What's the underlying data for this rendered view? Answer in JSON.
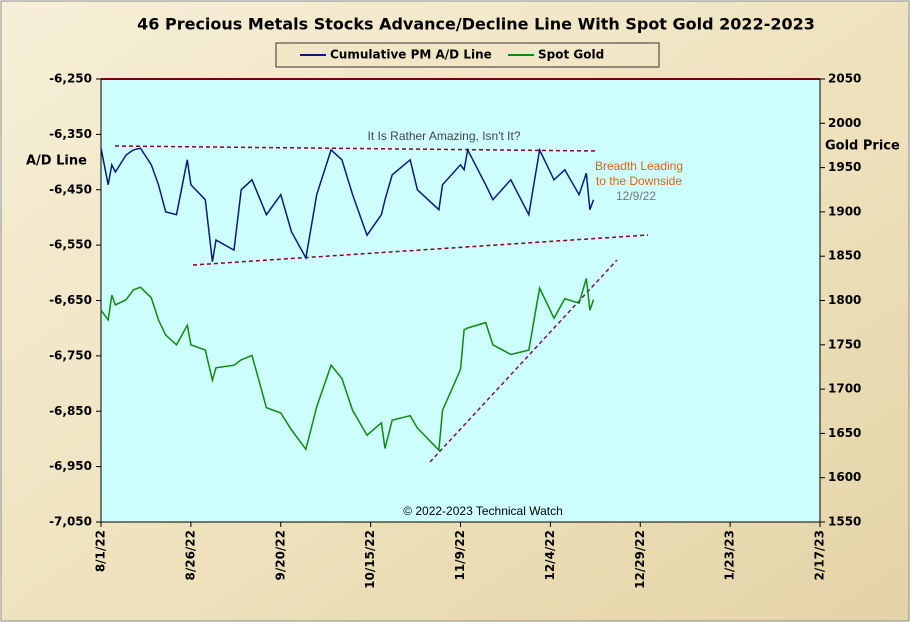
{
  "chart_data": {
    "type": "line",
    "title": "46 Precious Metals Stocks Advance/Decline Line With Spot Gold 2022-2023",
    "ylabel": "A/D Line",
    "y2label": "Gold Price",
    "annotations": [
      "It Is Rather Amazing, Isn't It?",
      "Breadth Leading",
      "to the Downside",
      "12/9/22",
      "© 2022-2023 Technical Watch"
    ],
    "x": [
      "2022-08-01",
      "2022-08-03",
      "2022-08-04",
      "2022-08-05",
      "2022-08-08",
      "2022-08-10",
      "2022-08-12",
      "2022-08-15",
      "2022-08-17",
      "2022-08-19",
      "2022-08-22",
      "2022-08-25",
      "2022-08-26",
      "2022-08-30",
      "2022-09-01",
      "2022-09-02",
      "2022-09-07",
      "2022-09-09",
      "2022-09-12",
      "2022-09-16",
      "2022-09-20",
      "2022-09-23",
      "2022-09-27",
      "2022-09-30",
      "2022-10-04",
      "2022-10-07",
      "2022-10-10",
      "2022-10-14",
      "2022-10-18",
      "2022-10-19",
      "2022-10-21",
      "2022-10-26",
      "2022-10-28",
      "2022-11-03",
      "2022-11-04",
      "2022-11-09",
      "2022-11-10",
      "2022-11-11",
      "2022-11-16",
      "2022-11-18",
      "2022-11-23",
      "2022-11-28",
      "2022-12-01",
      "2022-12-05",
      "2022-12-08",
      "2022-12-12",
      "2022-12-14",
      "2022-12-15",
      "2022-12-16"
    ],
    "series": [
      {
        "name": "Cumulative PM A/D Line",
        "color": "#0a1a7a",
        "values": [
          -6375,
          -6441,
          -6405,
          -6418,
          -6387,
          -6378,
          -6375,
          -6405,
          -6441,
          -6490,
          -6495,
          -6396,
          -6441,
          -6468,
          -6580,
          -6541,
          -6559,
          -6450,
          -6432,
          -6495,
          -6459,
          -6526,
          -6573,
          -6459,
          -6378,
          -6396,
          -6459,
          -6532,
          -6495,
          -6468,
          -6423,
          -6396,
          -6450,
          -6486,
          -6441,
          -6405,
          -6414,
          -6378,
          -6441,
          -6468,
          -6432,
          -6495,
          -6378,
          -6432,
          -6414,
          -6459,
          -6420,
          -6486,
          -6468
        ]
      },
      {
        "name": "Spot Gold",
        "color": "#118811",
        "axis": "y2",
        "values": [
          1789,
          1778,
          1806,
          1795,
          1801,
          1812,
          1815,
          1803,
          1778,
          1761,
          1750,
          1772,
          1750,
          1744,
          1710,
          1724,
          1727,
          1733,
          1738,
          1679,
          1673,
          1654,
          1632,
          1680,
          1727,
          1712,
          1676,
          1648,
          1662,
          1633,
          1665,
          1670,
          1656,
          1631,
          1676,
          1722,
          1767,
          1769,
          1775,
          1750,
          1739,
          1744,
          1814,
          1780,
          1802,
          1797,
          1825,
          1789,
          1801
        ]
      }
    ],
    "xlim": [
      "2022-08-01",
      "2023-02-17"
    ],
    "xticks": [
      {
        "value": "2022-08-01",
        "label": "8/1/22"
      },
      {
        "value": "2022-08-26",
        "label": "8/26/22"
      },
      {
        "value": "2022-09-20",
        "label": "9/20/22"
      },
      {
        "value": "2022-10-15",
        "label": "10/15/22"
      },
      {
        "value": "2022-11-09",
        "label": "11/9/22"
      },
      {
        "value": "2022-12-04",
        "label": "12/4/22"
      },
      {
        "value": "2022-12-29",
        "label": "12/29/22"
      },
      {
        "value": "2023-01-23",
        "label": "1/23/23"
      },
      {
        "value": "2023-02-17",
        "label": "2/17/23"
      }
    ],
    "ylim": [
      -7050,
      -6250
    ],
    "yticks": [
      {
        "value": -7050,
        "label": "-7,050"
      },
      {
        "value": -6950,
        "label": "-6,950"
      },
      {
        "value": -6850,
        "label": "-6,850"
      },
      {
        "value": -6750,
        "label": "-6,750"
      },
      {
        "value": -6650,
        "label": "-6,650"
      },
      {
        "value": -6550,
        "label": "-6,550"
      },
      {
        "value": -6450,
        "label": "-6,450"
      },
      {
        "value": -6350,
        "label": "-6,350"
      },
      {
        "value": -6250,
        "label": "-6,250"
      }
    ],
    "y2lim": [
      1550,
      2050
    ],
    "y2ticks": [
      1550,
      1600,
      1650,
      1700,
      1750,
      1800,
      1850,
      1900,
      1950,
      2000,
      2050
    ],
    "legend": "top"
  }
}
